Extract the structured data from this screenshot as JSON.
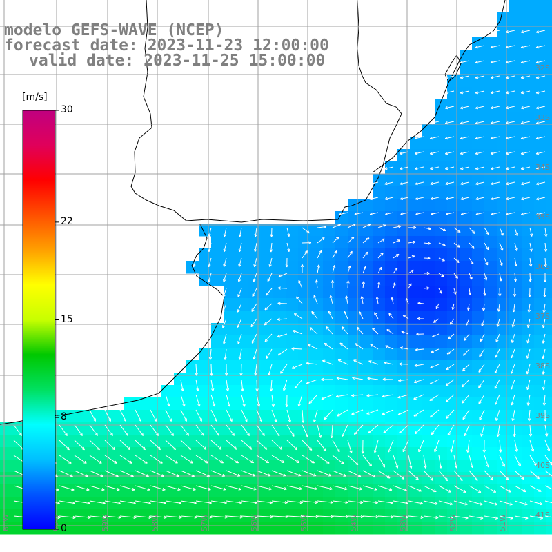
{
  "title": {
    "model": "modelo GEFS-WAVE (NCEP)",
    "forecast": "forecast date: 2023-11-23 12:00:00",
    "valid": "valid date: 2023-11-25 15:00:00"
  },
  "colorbar": {
    "unit": "[m/s]",
    "ticks": [
      {
        "label": "30",
        "value": 30
      },
      {
        "label": "22",
        "value": 22
      },
      {
        "label": "15",
        "value": 15
      },
      {
        "label": "8",
        "value": 8
      },
      {
        "label": "0",
        "value": 0
      }
    ],
    "stops": [
      "#0000ff",
      "#0055ff",
      "#00c0ff",
      "#00ffff",
      "#00e060",
      "#00c800",
      "#c8ff00",
      "#ffff00",
      "#ffa000",
      "#ff5000",
      "#ff0000",
      "#e0005a",
      "#c00080"
    ]
  },
  "map": {
    "lat_labels": [
      "32S",
      "33S",
      "34S",
      "35S",
      "36S",
      "37S",
      "38S",
      "39S",
      "40S",
      "41S"
    ],
    "lon_labels": [
      "61W",
      "60W",
      "59W",
      "58W",
      "57W",
      "56W",
      "55W",
      "54W",
      "53W",
      "52W",
      "51W"
    ],
    "variable": "wind speed",
    "colors": {
      "land": "#ffffff",
      "grid": "#a0a0a0",
      "coast": "#000000",
      "arrow": "#ffffff"
    }
  }
}
